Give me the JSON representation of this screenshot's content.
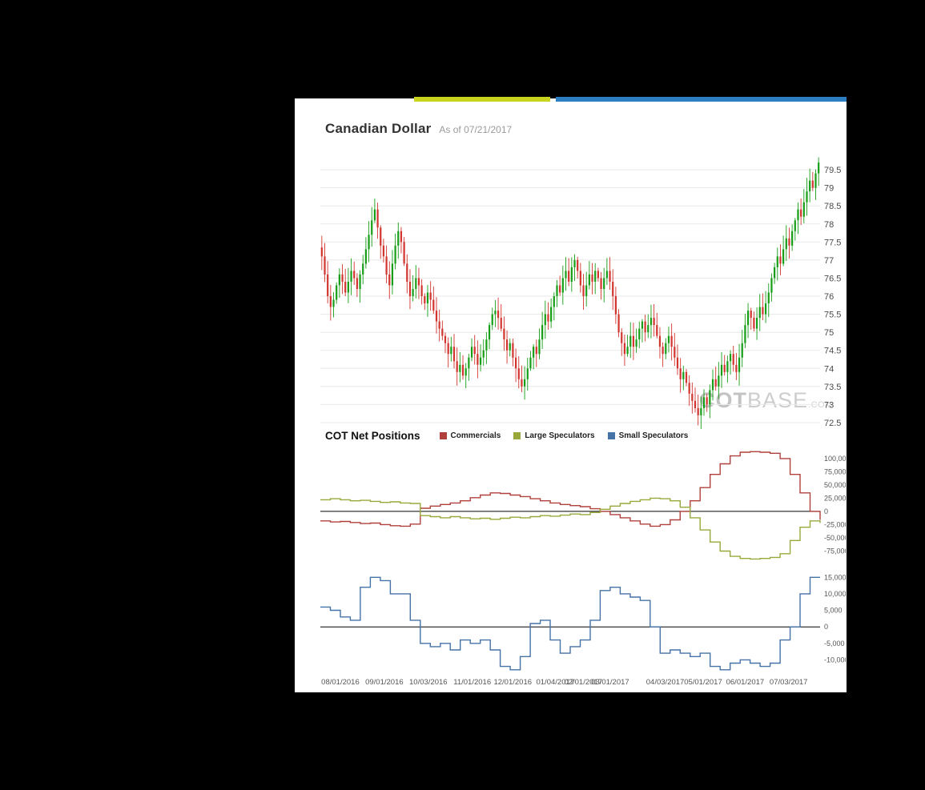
{
  "page": {
    "title": "Canadian Dollar",
    "as_of_label": "As of 07/21/2017",
    "watermark_part1": "COT",
    "watermark_part2": "BASE",
    "watermark_part3": ".COM",
    "background_color": "#000000",
    "panel_color": "#ffffff",
    "accent_yellow": "#c9d41e",
    "accent_blue": "#2b7fc2"
  },
  "cot_section": {
    "title": "COT Net Positions",
    "legend": [
      {
        "label": "Commercials",
        "color": "#b0403c"
      },
      {
        "label": "Large Speculators",
        "color": "#9aa83b"
      },
      {
        "label": "Small Speculators",
        "color": "#4572a7"
      }
    ]
  },
  "xaxis": {
    "labels": [
      "08/01/2016",
      "09/01/2016",
      "10/03/2016",
      "11/01/2016",
      "12/01/2016",
      "01/04/2017",
      "02/01/2017",
      "03/01/2017",
      "04/03/2017",
      "05/01/2017",
      "06/01/2017",
      "07/03/2017"
    ],
    "positions": [
      0.04,
      0.128,
      0.216,
      0.304,
      0.385,
      0.47,
      0.526,
      0.58,
      0.69,
      0.766,
      0.85,
      0.937
    ]
  },
  "chart_data": [
    {
      "name": "canadian-dollar-price",
      "type": "candlestick",
      "title": "Canadian Dollar",
      "as_of": "07/21/2017",
      "ylim": [
        72.3,
        80.1
      ],
      "yticks": [
        79.5,
        79,
        78.5,
        78,
        77.5,
        77,
        76.5,
        76,
        75.5,
        75,
        74.5,
        74,
        73.5,
        73,
        72.5
      ],
      "ylabel_side": "right",
      "grid": true,
      "grid_color": "#e8e8e8",
      "up_color": "#169e16",
      "down_color": "#d2342e",
      "closes": [
        77.1,
        76.6,
        76.0,
        75.7,
        75.9,
        76.3,
        76.6,
        76.4,
        76.1,
        76.4,
        76.7,
        76.5,
        76.2,
        76.6,
        76.9,
        77.3,
        77.7,
        78.1,
        78.4,
        77.9,
        77.4,
        77.1,
        76.6,
        76.3,
        76.9,
        77.4,
        77.8,
        77.5,
        76.9,
        76.4,
        76.0,
        76.2,
        76.5,
        76.3,
        76.0,
        75.8,
        76.1,
        75.9,
        75.6,
        75.3,
        75.1,
        74.9,
        74.7,
        74.4,
        74.6,
        74.2,
        73.9,
        74.1,
        73.8,
        74.0,
        74.3,
        74.6,
        74.4,
        74.1,
        74.3,
        74.5,
        74.8,
        75.2,
        75.5,
        75.6,
        75.4,
        75.1,
        74.8,
        74.5,
        74.7,
        74.3,
        74.0,
        73.7,
        73.5,
        73.7,
        74.0,
        74.3,
        74.6,
        74.4,
        74.8,
        75.2,
        75.5,
        75.3,
        75.7,
        76.0,
        76.3,
        76.1,
        76.5,
        76.7,
        76.4,
        76.8,
        77.0,
        76.7,
        76.3,
        76.0,
        76.3,
        76.6,
        76.4,
        76.7,
        76.5,
        76.2,
        76.5,
        76.7,
        76.4,
        76.0,
        75.5,
        75.0,
        74.7,
        74.4,
        74.6,
        74.9,
        74.6,
        74.8,
        75.1,
        75.3,
        75.0,
        75.2,
        75.4,
        75.2,
        74.9,
        74.6,
        74.4,
        74.7,
        74.9,
        74.6,
        74.3,
        74.0,
        73.7,
        73.9,
        73.6,
        73.3,
        73.1,
        72.9,
        72.7,
        72.9,
        73.2,
        73.0,
        73.4,
        73.7,
        73.5,
        73.8,
        74.1,
        73.9,
        74.2,
        74.4,
        74.1,
        73.9,
        74.3,
        74.7,
        75.2,
        75.6,
        75.4,
        75.1,
        75.4,
        75.7,
        75.5,
        75.8,
        76.1,
        76.5,
        76.8,
        77.1,
        76.9,
        77.3,
        77.6,
        77.4,
        77.8,
        78.1,
        78.4,
        78.2,
        78.6,
        78.9,
        79.2,
        79.0,
        79.4,
        79.7
      ]
    },
    {
      "name": "cot-net-positions-commercials-large",
      "type": "step-line",
      "ylim": [
        -97000,
        118000
      ],
      "yticks": [
        100000,
        75000,
        50000,
        25000,
        0,
        -25000,
        -50000,
        -75000
      ],
      "ylabel_side": "right",
      "zero_line": true,
      "series": [
        {
          "name": "Commercials",
          "color": "#b0403c",
          "values": [
            -18000,
            -20000,
            -19000,
            -21000,
            -23000,
            -22000,
            -25000,
            -27000,
            -28000,
            -24000,
            6000,
            10000,
            13000,
            16000,
            20000,
            26000,
            31000,
            35000,
            34000,
            31000,
            28000,
            24000,
            20000,
            16000,
            13000,
            11000,
            9000,
            5000,
            0,
            -6000,
            -12000,
            -18000,
            -24000,
            -28000,
            -25000,
            -16000,
            0,
            20000,
            45000,
            70000,
            90000,
            105000,
            112000,
            113000,
            112000,
            110000,
            100000,
            70000,
            35000,
            0,
            -16000
          ]
        },
        {
          "name": "Large Speculators",
          "color": "#9aa83b",
          "values": [
            22000,
            24000,
            22000,
            20000,
            21000,
            19000,
            17000,
            18000,
            16000,
            15000,
            -8000,
            -10000,
            -12000,
            -10000,
            -12000,
            -14000,
            -13000,
            -15000,
            -13000,
            -11000,
            -12000,
            -10000,
            -8000,
            -9000,
            -7000,
            -5000,
            -6000,
            -2000,
            4000,
            10000,
            15000,
            19000,
            22000,
            25000,
            24000,
            20000,
            8000,
            -12000,
            -35000,
            -58000,
            -75000,
            -85000,
            -89000,
            -90000,
            -89000,
            -87000,
            -80000,
            -55000,
            -30000,
            -18000,
            -22000
          ]
        }
      ]
    },
    {
      "name": "cot-net-positions-small",
      "type": "step-line",
      "ylim": [
        -15000,
        17500
      ],
      "yticks": [
        15000,
        10000,
        5000,
        0,
        -5000,
        -10000
      ],
      "ylabel_side": "right",
      "zero_line": true,
      "series": [
        {
          "name": "Small Speculators",
          "color": "#4572a7",
          "values": [
            6000,
            5000,
            3000,
            2000,
            12000,
            15000,
            14000,
            10000,
            10000,
            2000,
            -5000,
            -6000,
            -5000,
            -7000,
            -4000,
            -5000,
            -4000,
            -7000,
            -12000,
            -13000,
            -9000,
            1000,
            2000,
            -4000,
            -8000,
            -6000,
            -4000,
            2000,
            11000,
            12000,
            10000,
            9000,
            8000,
            0,
            -8000,
            -7000,
            -8000,
            -9000,
            -8000,
            -12000,
            -13000,
            -11000,
            -10000,
            -11000,
            -12000,
            -11000,
            -4000,
            0,
            10000,
            15000,
            15000
          ]
        }
      ]
    }
  ]
}
